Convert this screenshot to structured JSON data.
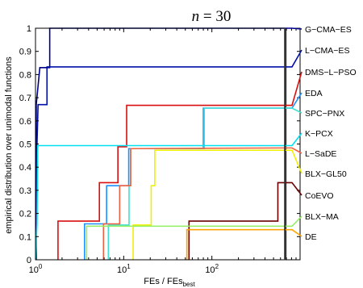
{
  "chart_data": {
    "type": "line",
    "subtype": "step",
    "title_var": "n",
    "title_eq": " = 30",
    "xlabel_main": "FEs / FEs",
    "xlabel_sub": "best",
    "ylabel": "empirical distribution over unimodal functions",
    "xscale": "log",
    "xlim": [
      1,
      1000
    ],
    "ylim": [
      0,
      1
    ],
    "xticks": [
      {
        "value": 1,
        "base": "10",
        "exp": "0"
      },
      {
        "value": 10,
        "base": "10",
        "exp": "1"
      },
      {
        "value": 100,
        "base": "10",
        "exp": "2"
      }
    ],
    "yticks": [
      0,
      0.1,
      0.2,
      0.3,
      0.4,
      0.5,
      0.6,
      0.7,
      0.8,
      0.9,
      1
    ],
    "ytick_labels": [
      "0",
      "0.1",
      "0.2",
      "0.3",
      "0.4",
      "0.5",
      "0.6",
      "0.7",
      "0.8",
      "0.9",
      "1"
    ],
    "budget_line_x": 680,
    "series": [
      {
        "name": "G−CMA−ES",
        "color": "#00008B",
        "end_y": 1.0,
        "points": [
          [
            1.02,
            0
          ],
          [
            1.02,
            0.67
          ],
          [
            1.12,
            0.83
          ],
          [
            1.45,
            0.83
          ],
          [
            1.45,
            1.0
          ],
          [
            680,
            1.0
          ]
        ]
      },
      {
        "name": "L−CMA−ES",
        "color": "#0010A8",
        "end_y": 0.833,
        "points": [
          [
            1.0,
            0
          ],
          [
            1.04,
            0.5
          ],
          [
            1.07,
            0.67
          ],
          [
            1.35,
            0.67
          ],
          [
            1.35,
            0.833
          ],
          [
            680,
            0.833
          ]
        ]
      },
      {
        "name": "DMS−L−PSO",
        "color": "#D81010",
        "end_y": 0.667,
        "points": [
          [
            1.8,
            0
          ],
          [
            1.8,
            0.167
          ],
          [
            3.5,
            0.167
          ],
          [
            3.5,
            0.167
          ],
          [
            5.3,
            0.167
          ],
          [
            5.3,
            0.333
          ],
          [
            7.8,
            0.333
          ],
          [
            7.8,
            0.333
          ],
          [
            8.6,
            0.333
          ],
          [
            8.6,
            0.488
          ],
          [
            10.8,
            0.488
          ],
          [
            10.8,
            0.667
          ],
          [
            680,
            0.667
          ]
        ]
      },
      {
        "name": "EDA",
        "color": "#1E90FF",
        "end_y": 0.655,
        "points": [
          [
            3.6,
            0
          ],
          [
            3.6,
            0.155
          ],
          [
            6.4,
            0.155
          ],
          [
            6.4,
            0.32
          ],
          [
            9.6,
            0.32
          ],
          [
            9.6,
            0.32
          ],
          [
            11.4,
            0.32
          ],
          [
            11.4,
            0.48
          ],
          [
            40,
            0.48
          ],
          [
            40,
            0.48
          ],
          [
            80,
            0.48
          ],
          [
            80,
            0.655
          ],
          [
            680,
            0.655
          ]
        ]
      },
      {
        "name": "SPC−PNX",
        "color": "#40E0D0",
        "end_y": 0.655,
        "points": [
          [
            6.7,
            0
          ],
          [
            6.7,
            0.15
          ],
          [
            11.5,
            0.15
          ],
          [
            11.5,
            0.32
          ],
          [
            12.0,
            0.32
          ],
          [
            12.0,
            0.48
          ],
          [
            82,
            0.48
          ],
          [
            82,
            0.655
          ],
          [
            680,
            0.655
          ]
        ]
      },
      {
        "name": "K−PCX",
        "color": "#00E0F0",
        "end_y": 0.493,
        "points": [
          [
            1.0,
            0
          ],
          [
            1.04,
            0.155
          ],
          [
            1.06,
            0.493
          ],
          [
            680,
            0.493
          ]
        ]
      },
      {
        "name": "L−SaDE",
        "color": "#F06040",
        "end_y": 0.483,
        "points": [
          [
            5.9,
            0
          ],
          [
            5.9,
            0.155
          ],
          [
            9.0,
            0.155
          ],
          [
            9.0,
            0.32
          ],
          [
            12.0,
            0.32
          ],
          [
            12.0,
            0.48
          ],
          [
            680,
            0.483
          ]
        ]
      },
      {
        "name": "BLX−GL50",
        "color": "#F0F000",
        "end_y": 0.473,
        "points": [
          [
            12.8,
            0
          ],
          [
            12.8,
            0.15
          ],
          [
            20.5,
            0.15
          ],
          [
            20.5,
            0.32
          ],
          [
            22.5,
            0.32
          ],
          [
            22.5,
            0.473
          ],
          [
            680,
            0.473
          ]
        ]
      },
      {
        "name": "CoEVO",
        "color": "#6B0000",
        "end_y": 0.333,
        "points": [
          [
            55,
            0
          ],
          [
            55,
            0.167
          ],
          [
            560,
            0.167
          ],
          [
            560,
            0.333
          ],
          [
            680,
            0.333
          ]
        ]
      },
      {
        "name": "BLX−MA",
        "color": "#90EE60",
        "end_y": 0.145,
        "points": [
          [
            3.8,
            0
          ],
          [
            3.8,
            0.145
          ],
          [
            680,
            0.145
          ]
        ]
      },
      {
        "name": "DE",
        "color": "#FFA500",
        "end_y": 0.13,
        "points": [
          [
            52,
            0
          ],
          [
            52,
            0.13
          ],
          [
            680,
            0.13
          ]
        ]
      }
    ]
  }
}
